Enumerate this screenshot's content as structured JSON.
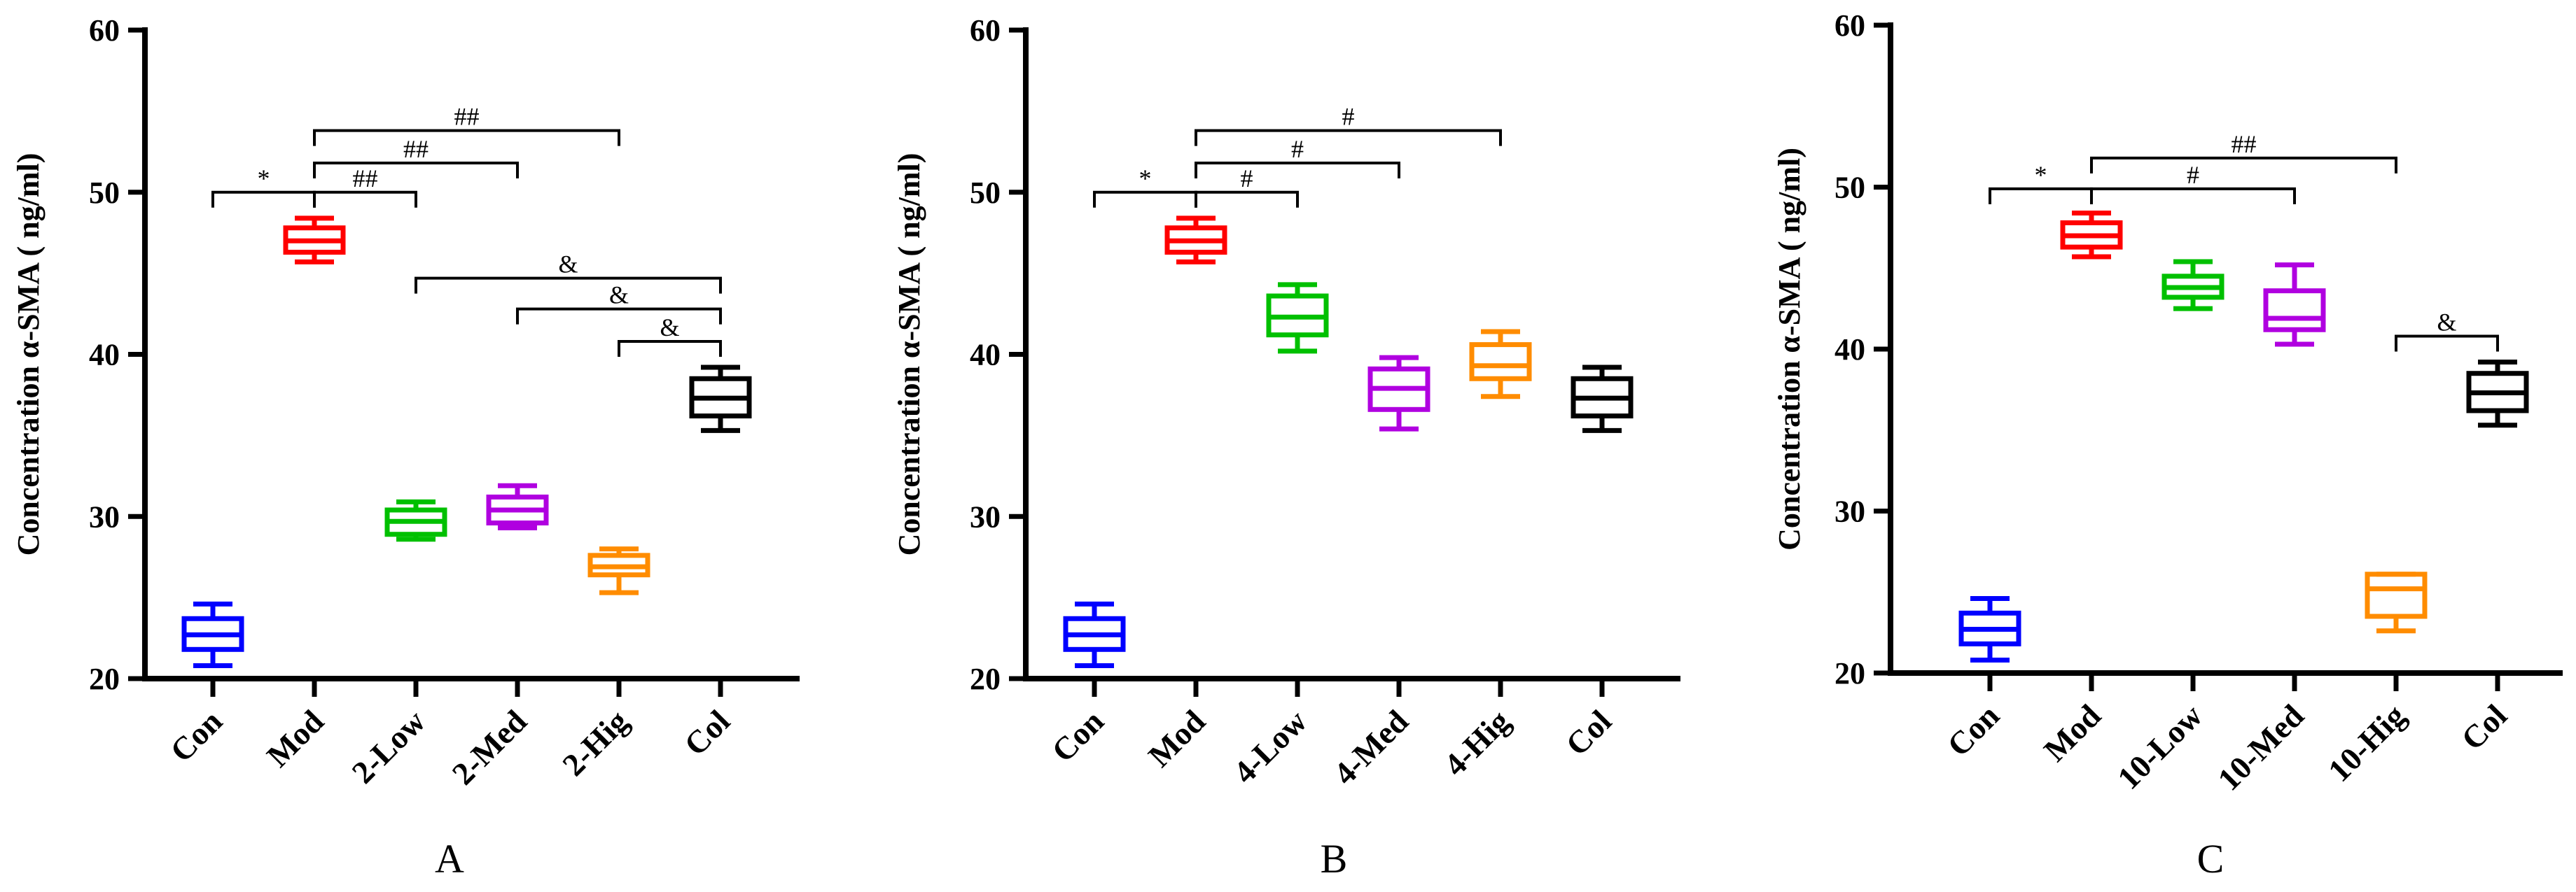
{
  "chart_data": [
    {
      "type": "box",
      "panel_label": "A",
      "ylabel": "Concentration α-SMA ( ng/ml)",
      "ylim": [
        20,
        60
      ],
      "yticks": [
        20,
        30,
        40,
        50,
        60
      ],
      "categories": [
        "Con",
        "Mod",
        "2-Low",
        "2-Med",
        "2-Hig",
        "Col"
      ],
      "colors": [
        "#0000ff",
        "#ff0000",
        "#00c000",
        "#b000e0",
        "#ff8c00",
        "#000000"
      ],
      "boxes": [
        {
          "min": 20.8,
          "q1": 21.8,
          "median": 22.7,
          "q3": 23.7,
          "max": 24.6
        },
        {
          "min": 45.7,
          "q1": 46.3,
          "median": 47.0,
          "q3": 47.8,
          "max": 48.4
        },
        {
          "min": 28.6,
          "q1": 28.9,
          "median": 29.7,
          "q3": 30.4,
          "max": 30.9
        },
        {
          "min": 29.3,
          "q1": 29.6,
          "median": 30.4,
          "q3": 31.2,
          "max": 31.9
        },
        {
          "min": 25.3,
          "q1": 26.4,
          "median": 26.9,
          "q3": 27.6,
          "max": 28.0
        },
        {
          "min": 35.3,
          "q1": 36.2,
          "median": 37.3,
          "q3": 38.5,
          "max": 39.2
        }
      ],
      "annotations": [
        {
          "from": 0,
          "to": 1,
          "y": 50.0,
          "label": "*"
        },
        {
          "from": 1,
          "to": 2,
          "y": 50.0,
          "label": "##"
        },
        {
          "from": 1,
          "to": 3,
          "y": 51.8,
          "label": "##"
        },
        {
          "from": 1,
          "to": 4,
          "y": 53.8,
          "label": "##"
        },
        {
          "from": 2,
          "to": 5,
          "y": 44.7,
          "label": "&"
        },
        {
          "from": 3,
          "to": 5,
          "y": 42.8,
          "label": "&"
        },
        {
          "from": 4,
          "to": 5,
          "y": 40.8,
          "label": "&"
        }
      ]
    },
    {
      "type": "box",
      "panel_label": "B",
      "ylabel": "Concentration α-SMA ( ng/ml)",
      "ylim": [
        20,
        60
      ],
      "yticks": [
        20,
        30,
        40,
        50,
        60
      ],
      "categories": [
        "Con",
        "Mod",
        "4-Low",
        "4-Med",
        "4-Hig",
        "Col"
      ],
      "colors": [
        "#0000ff",
        "#ff0000",
        "#00c000",
        "#b000e0",
        "#ff8c00",
        "#000000"
      ],
      "boxes": [
        {
          "min": 20.8,
          "q1": 21.8,
          "median": 22.7,
          "q3": 23.7,
          "max": 24.6
        },
        {
          "min": 45.7,
          "q1": 46.3,
          "median": 47.0,
          "q3": 47.8,
          "max": 48.4
        },
        {
          "min": 40.2,
          "q1": 41.2,
          "median": 42.3,
          "q3": 43.6,
          "max": 44.3
        },
        {
          "min": 35.4,
          "q1": 36.6,
          "median": 37.9,
          "q3": 39.1,
          "max": 39.8
        },
        {
          "min": 37.4,
          "q1": 38.5,
          "median": 39.3,
          "q3": 40.6,
          "max": 41.4
        },
        {
          "min": 35.3,
          "q1": 36.2,
          "median": 37.3,
          "q3": 38.5,
          "max": 39.2
        }
      ],
      "annotations": [
        {
          "from": 0,
          "to": 1,
          "y": 50.0,
          "label": "*"
        },
        {
          "from": 1,
          "to": 2,
          "y": 50.0,
          "label": "#"
        },
        {
          "from": 1,
          "to": 3,
          "y": 51.8,
          "label": "#"
        },
        {
          "from": 1,
          "to": 4,
          "y": 53.8,
          "label": "#"
        }
      ]
    },
    {
      "type": "box",
      "panel_label": "C",
      "ylabel": "Concentration α-SMA ( ng/ml)",
      "ylim": [
        20,
        60
      ],
      "yticks": [
        20,
        30,
        40,
        50,
        60
      ],
      "categories": [
        "Con",
        "Mod",
        "10-Low",
        "10-Med",
        "10-Hig",
        "Col"
      ],
      "colors": [
        "#0000ff",
        "#ff0000",
        "#00c000",
        "#b000e0",
        "#ff8c00",
        "#000000"
      ],
      "boxes": [
        {
          "min": 20.8,
          "q1": 21.8,
          "median": 22.7,
          "q3": 23.7,
          "max": 24.6
        },
        {
          "min": 45.7,
          "q1": 46.3,
          "median": 47.0,
          "q3": 47.8,
          "max": 48.4
        },
        {
          "min": 42.5,
          "q1": 43.2,
          "median": 43.8,
          "q3": 44.5,
          "max": 45.4
        },
        {
          "min": 40.3,
          "q1": 41.2,
          "median": 41.9,
          "q3": 43.6,
          "max": 45.2
        },
        {
          "min": 22.6,
          "q1": 23.5,
          "median": 25.2,
          "q3": 26.1,
          "max": 26.1
        },
        {
          "min": 35.3,
          "q1": 36.2,
          "median": 37.3,
          "q3": 38.5,
          "max": 39.2
        }
      ],
      "annotations": [
        {
          "from": 0,
          "to": 1,
          "y": 49.9,
          "label": "*"
        },
        {
          "from": 1,
          "to": 3,
          "y": 49.9,
          "label": "#"
        },
        {
          "from": 1,
          "to": 4,
          "y": 51.8,
          "label": "##"
        },
        {
          "from": 4,
          "to": 5,
          "y": 40.8,
          "label": "&"
        }
      ]
    }
  ]
}
